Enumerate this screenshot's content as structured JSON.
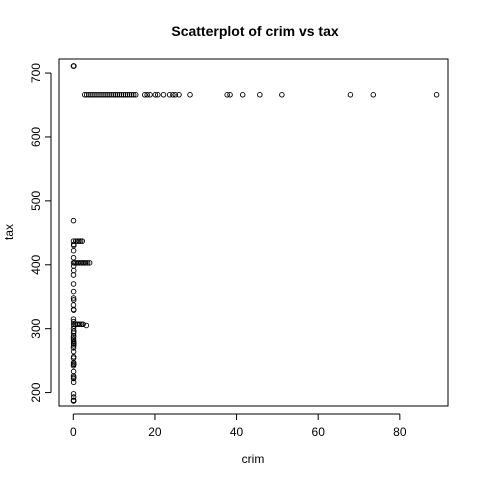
{
  "chart_data": {
    "type": "scatter",
    "title": "Scatterplot of crim vs tax",
    "xlabel": "crim",
    "ylabel": "tax",
    "xlim": [
      -3.5,
      91.8
    ],
    "ylim": [
      179,
      722
    ],
    "xticks": [
      0,
      20,
      40,
      60,
      80
    ],
    "yticks": [
      200,
      300,
      400,
      500,
      600,
      700
    ],
    "grid": false,
    "legend": "none",
    "point_color": "#000000",
    "points": [
      {
        "x": 0.03,
        "y": 711
      },
      {
        "x": 0.09,
        "y": 711
      },
      {
        "x": 0.15,
        "y": 711
      },
      {
        "x": 0.05,
        "y": 469
      },
      {
        "x": 0.05,
        "y": 437
      },
      {
        "x": 0.12,
        "y": 430
      },
      {
        "x": 0.1,
        "y": 432
      },
      {
        "x": 0.6,
        "y": 437
      },
      {
        "x": 1.0,
        "y": 437
      },
      {
        "x": 1.4,
        "y": 437
      },
      {
        "x": 1.8,
        "y": 437
      },
      {
        "x": 2.2,
        "y": 437
      },
      {
        "x": 0.08,
        "y": 422
      },
      {
        "x": 0.06,
        "y": 411
      },
      {
        "x": 0.07,
        "y": 403
      },
      {
        "x": 0.09,
        "y": 398
      },
      {
        "x": 0.11,
        "y": 391
      },
      {
        "x": 0.05,
        "y": 384
      },
      {
        "x": 0.3,
        "y": 403
      },
      {
        "x": 0.7,
        "y": 403
      },
      {
        "x": 1.1,
        "y": 403
      },
      {
        "x": 1.5,
        "y": 403
      },
      {
        "x": 1.9,
        "y": 403
      },
      {
        "x": 2.3,
        "y": 403
      },
      {
        "x": 2.7,
        "y": 403
      },
      {
        "x": 3.1,
        "y": 403
      },
      {
        "x": 3.5,
        "y": 403
      },
      {
        "x": 4.0,
        "y": 403
      },
      {
        "x": 0.06,
        "y": 370
      },
      {
        "x": 0.08,
        "y": 358
      },
      {
        "x": 0.07,
        "y": 348
      },
      {
        "x": 0.1,
        "y": 345
      },
      {
        "x": 0.05,
        "y": 337
      },
      {
        "x": 0.09,
        "y": 330
      },
      {
        "x": 0.11,
        "y": 329
      },
      {
        "x": 0.05,
        "y": 315
      },
      {
        "x": 0.08,
        "y": 311
      },
      {
        "x": 0.1,
        "y": 307
      },
      {
        "x": 0.15,
        "y": 304
      },
      {
        "x": 0.06,
        "y": 300
      },
      {
        "x": 0.12,
        "y": 296
      },
      {
        "x": 0.07,
        "y": 293
      },
      {
        "x": 0.09,
        "y": 289
      },
      {
        "x": 0.05,
        "y": 287
      },
      {
        "x": 0.5,
        "y": 307
      },
      {
        "x": 0.9,
        "y": 307
      },
      {
        "x": 1.2,
        "y": 307
      },
      {
        "x": 1.6,
        "y": 307
      },
      {
        "x": 2.0,
        "y": 307
      },
      {
        "x": 2.4,
        "y": 307
      },
      {
        "x": 3.2,
        "y": 305
      },
      {
        "x": 0.06,
        "y": 284
      },
      {
        "x": 0.08,
        "y": 281
      },
      {
        "x": 0.1,
        "y": 279
      },
      {
        "x": 0.07,
        "y": 277
      },
      {
        "x": 0.12,
        "y": 276
      },
      {
        "x": 0.09,
        "y": 273
      },
      {
        "x": 0.05,
        "y": 270
      },
      {
        "x": 0.08,
        "y": 264
      },
      {
        "x": 0.1,
        "y": 256
      },
      {
        "x": 0.06,
        "y": 254
      },
      {
        "x": 0.09,
        "y": 247
      },
      {
        "x": 0.07,
        "y": 245
      },
      {
        "x": 0.11,
        "y": 244
      },
      {
        "x": 0.05,
        "y": 242
      },
      {
        "x": 0.08,
        "y": 233
      },
      {
        "x": 0.06,
        "y": 226
      },
      {
        "x": 0.1,
        "y": 224
      },
      {
        "x": 0.07,
        "y": 222
      },
      {
        "x": 0.09,
        "y": 216
      },
      {
        "x": 0.06,
        "y": 198
      },
      {
        "x": 0.08,
        "y": 193
      },
      {
        "x": 0.07,
        "y": 188
      },
      {
        "x": 0.1,
        "y": 187
      },
      {
        "x": 0.05,
        "y": 187
      },
      {
        "x": 2.8,
        "y": 666
      },
      {
        "x": 3.3,
        "y": 666
      },
      {
        "x": 3.8,
        "y": 666
      },
      {
        "x": 4.3,
        "y": 666
      },
      {
        "x": 4.8,
        "y": 666
      },
      {
        "x": 5.3,
        "y": 666
      },
      {
        "x": 5.8,
        "y": 666
      },
      {
        "x": 6.3,
        "y": 666
      },
      {
        "x": 6.8,
        "y": 666
      },
      {
        "x": 7.3,
        "y": 666
      },
      {
        "x": 7.8,
        "y": 666
      },
      {
        "x": 8.3,
        "y": 666
      },
      {
        "x": 8.8,
        "y": 666
      },
      {
        "x": 9.3,
        "y": 666
      },
      {
        "x": 9.8,
        "y": 666
      },
      {
        "x": 10.3,
        "y": 666
      },
      {
        "x": 10.8,
        "y": 666
      },
      {
        "x": 11.3,
        "y": 666
      },
      {
        "x": 11.8,
        "y": 666
      },
      {
        "x": 12.3,
        "y": 666
      },
      {
        "x": 12.8,
        "y": 666
      },
      {
        "x": 13.3,
        "y": 666
      },
      {
        "x": 13.8,
        "y": 666
      },
      {
        "x": 14.3,
        "y": 666
      },
      {
        "x": 14.8,
        "y": 666
      },
      {
        "x": 15.3,
        "y": 666
      },
      {
        "x": 17.5,
        "y": 666
      },
      {
        "x": 18.1,
        "y": 666
      },
      {
        "x": 18.8,
        "y": 666
      },
      {
        "x": 20.1,
        "y": 666
      },
      {
        "x": 20.7,
        "y": 666
      },
      {
        "x": 22.1,
        "y": 666
      },
      {
        "x": 23.6,
        "y": 666
      },
      {
        "x": 24.4,
        "y": 666
      },
      {
        "x": 25.0,
        "y": 666
      },
      {
        "x": 25.9,
        "y": 666
      },
      {
        "x": 28.6,
        "y": 666
      },
      {
        "x": 37.7,
        "y": 666
      },
      {
        "x": 38.4,
        "y": 666
      },
      {
        "x": 41.5,
        "y": 666
      },
      {
        "x": 45.7,
        "y": 666
      },
      {
        "x": 51.1,
        "y": 666
      },
      {
        "x": 67.9,
        "y": 666
      },
      {
        "x": 73.5,
        "y": 666
      },
      {
        "x": 89.0,
        "y": 666
      }
    ]
  }
}
